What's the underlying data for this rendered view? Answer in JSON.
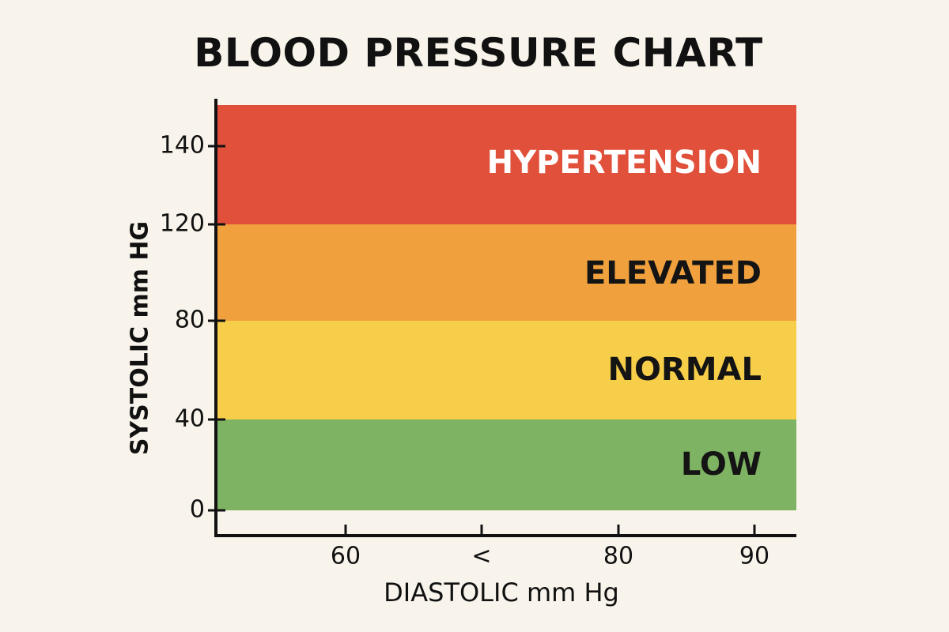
{
  "chart_data": {
    "type": "bar",
    "title": "BLOOD PRESSURE CHART",
    "xlabel": "DIASTOLIC mm Hg",
    "ylabel": "SYSTOLIC mm HG",
    "x_ticks": [
      "60",
      "<",
      "80",
      "90"
    ],
    "y_ticks": [
      {
        "value": 0,
        "label": "0"
      },
      {
        "value": 40,
        "label": "40"
      },
      {
        "value": 80,
        "label": "80"
      },
      {
        "value": 120,
        "label": "120"
      },
      {
        "value": 140,
        "label": "140"
      }
    ],
    "bands": [
      {
        "name": "LOW",
        "from": 0,
        "to": 40,
        "color": "#7db362",
        "label_color": "#141414"
      },
      {
        "name": "NORMAL",
        "from": 40,
        "to": 80,
        "color": "#f7ce49",
        "label_color": "#141414"
      },
      {
        "name": "ELEVATED",
        "from": 80,
        "to": 120,
        "color": "#f0a03d",
        "label_color": "#141414"
      },
      {
        "name": "HYPERTENSION",
        "from": 120,
        "to": 150,
        "color": "#e0503a",
        "label_color": "#ffffff"
      }
    ],
    "grid": false,
    "legend": "none"
  }
}
